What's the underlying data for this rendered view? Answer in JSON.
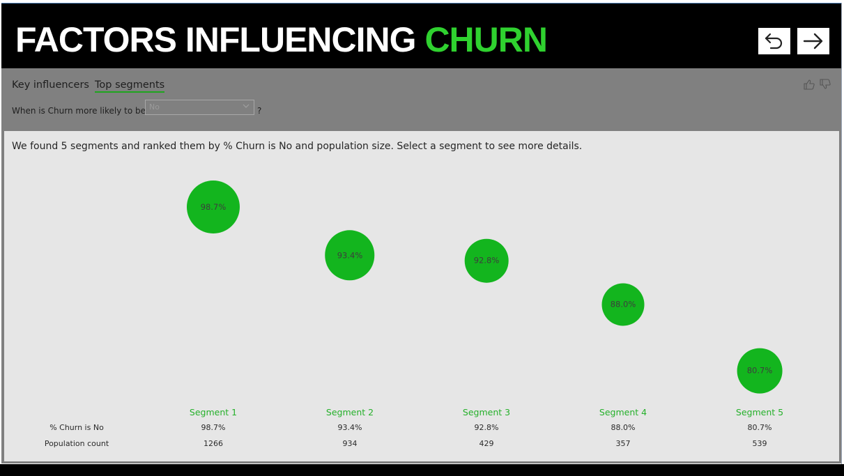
{
  "header": {
    "title_main": "FACTORS INFLUENCING",
    "title_accent": "CHURN",
    "back_icon": "undo-arrow-icon",
    "forward_icon": "right-arrow-icon"
  },
  "tabs": [
    {
      "label": "Key influencers",
      "active": false
    },
    {
      "label": "Top segments",
      "active": true
    }
  ],
  "question": {
    "prefix": "When is Churn more likely to be",
    "selected": "No",
    "suffix": "?"
  },
  "summary": "We found 5 segments and ranked them by % Churn is No and population size. Select a segment to see more details.",
  "table": {
    "metric_label": "% Churn is No",
    "population_label": "Population count"
  },
  "colors": {
    "accent": "#2fd12f",
    "bubble": "#13b51e",
    "segment_label": "#25b02a",
    "header_bg": "#000000",
    "panel_bg": "#e6e6e6"
  },
  "segments": [
    {
      "name": "Segment 1",
      "pct_label": "98.7%",
      "pct": 98.7,
      "population": "1266"
    },
    {
      "name": "Segment 2",
      "pct_label": "93.4%",
      "pct": 93.4,
      "population": "934"
    },
    {
      "name": "Segment 3",
      "pct_label": "92.8%",
      "pct": 92.8,
      "population": "429"
    },
    {
      "name": "Segment 4",
      "pct_label": "88.0%",
      "pct": 88.0,
      "population": "357"
    },
    {
      "name": "Segment 5",
      "pct_label": "80.7%",
      "pct": 80.7,
      "population": "539"
    }
  ]
}
